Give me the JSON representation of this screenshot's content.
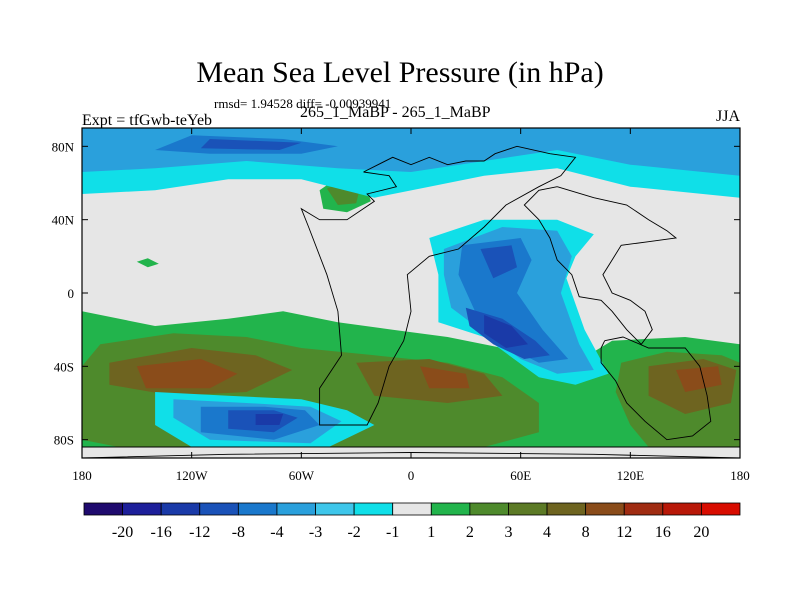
{
  "chart_data": {
    "type": "heatmap",
    "title": "Mean Sea Level Pressure (in hPa)",
    "stats": "rmsd= 1.94528 diff= -0.00939941",
    "left_label": "Expt = tfGwb-teYeb",
    "center_label": "265_1_MaBP - 265_1_MaBP",
    "right_label": "JJA",
    "xlim": [
      -180,
      180
    ],
    "ylim": [
      -90,
      90
    ],
    "x_ticks": [
      {
        "value": -180,
        "label": "180"
      },
      {
        "value": -120,
        "label": "120W"
      },
      {
        "value": -60,
        "label": "60W"
      },
      {
        "value": 0,
        "label": "0"
      },
      {
        "value": 60,
        "label": "60E"
      },
      {
        "value": 120,
        "label": "120E"
      },
      {
        "value": 180,
        "label": "180"
      }
    ],
    "y_ticks": [
      {
        "value": 80,
        "label": "80N"
      },
      {
        "value": 40,
        "label": "40N"
      },
      {
        "value": 0,
        "label": "0"
      },
      {
        "value": -40,
        "label": "40S"
      },
      {
        "value": -80,
        "label": "80S"
      }
    ],
    "colorbar": {
      "levels": [
        "-20",
        "-16",
        "-12",
        "-8",
        "-4",
        "-3",
        "-2",
        "-1",
        "1",
        "2",
        "3",
        "4",
        "8",
        "12",
        "16",
        "20"
      ],
      "colors": [
        "#1f0a6e",
        "#1d1f9a",
        "#1a3aa8",
        "#1a52b8",
        "#1a78cc",
        "#2aa0dc",
        "#3ec6ea",
        "#10dfe8",
        "#e6e6e6",
        "#22b44c",
        "#4e8a2c",
        "#5c7a26",
        "#6e6420",
        "#8a4c1a",
        "#a02c12",
        "#b81808",
        "#d80c00"
      ]
    },
    "regions": [
      {
        "level": 1,
        "points": [
          [
            -180,
            -10
          ],
          [
            -140,
            -18
          ],
          [
            -100,
            -14
          ],
          [
            -70,
            -10
          ],
          [
            -40,
            -16
          ],
          [
            -10,
            -20
          ],
          [
            20,
            -24
          ],
          [
            50,
            -30
          ],
          [
            80,
            -44
          ],
          [
            110,
            -26
          ],
          [
            150,
            -24
          ],
          [
            180,
            -28
          ],
          [
            180,
            -84
          ],
          [
            -180,
            -84
          ]
        ]
      },
      {
        "level": 1,
        "points": [
          [
            -50,
            56
          ],
          [
            -40,
            63
          ],
          [
            -25,
            60
          ],
          [
            -22,
            50
          ],
          [
            -35,
            44
          ],
          [
            -48,
            46
          ]
        ]
      },
      {
        "level": 1,
        "points": [
          [
            -150,
            17
          ],
          [
            -144,
            19
          ],
          [
            -138,
            16
          ],
          [
            -144,
            14
          ]
        ]
      },
      {
        "level": 2,
        "points": [
          [
            -170,
            -28
          ],
          [
            -130,
            -22
          ],
          [
            -90,
            -24
          ],
          [
            -60,
            -30
          ],
          [
            -20,
            -34
          ],
          [
            20,
            -38
          ],
          [
            50,
            -46
          ],
          [
            70,
            -60
          ],
          [
            70,
            -76
          ],
          [
            40,
            -84
          ],
          [
            -20,
            -84
          ],
          [
            -90,
            -84
          ],
          [
            -160,
            -84
          ],
          [
            -180,
            -80
          ],
          [
            -180,
            -40
          ]
        ]
      },
      {
        "level": 2,
        "points": [
          [
            115,
            -38
          ],
          [
            140,
            -32
          ],
          [
            170,
            -34
          ],
          [
            180,
            -38
          ],
          [
            180,
            -84
          ],
          [
            130,
            -84
          ],
          [
            120,
            -72
          ],
          [
            112,
            -54
          ]
        ]
      },
      {
        "level": 2,
        "points": [
          [
            -46,
            57
          ],
          [
            -36,
            61
          ],
          [
            -28,
            57
          ],
          [
            -30,
            49
          ],
          [
            -40,
            48
          ]
        ]
      },
      {
        "level": 3,
        "points": [
          [
            -165,
            -38
          ],
          [
            -120,
            -30
          ],
          [
            -85,
            -34
          ],
          [
            -65,
            -42
          ],
          [
            -90,
            -54
          ],
          [
            -130,
            -56
          ],
          [
            -165,
            -50
          ]
        ]
      },
      {
        "level": 3,
        "points": [
          [
            -30,
            -38
          ],
          [
            10,
            -36
          ],
          [
            40,
            -44
          ],
          [
            50,
            -56
          ],
          [
            20,
            -60
          ],
          [
            -20,
            -56
          ]
        ]
      },
      {
        "level": 3,
        "points": [
          [
            130,
            -40
          ],
          [
            160,
            -36
          ],
          [
            178,
            -42
          ],
          [
            175,
            -60
          ],
          [
            150,
            -66
          ],
          [
            130,
            -56
          ]
        ]
      },
      {
        "level": 4,
        "points": [
          [
            -150,
            -40
          ],
          [
            -115,
            -36
          ],
          [
            -95,
            -44
          ],
          [
            -110,
            -52
          ],
          [
            -145,
            -52
          ]
        ]
      },
      {
        "level": 4,
        "points": [
          [
            5,
            -40
          ],
          [
            30,
            -44
          ],
          [
            32,
            -52
          ],
          [
            10,
            -52
          ]
        ]
      },
      {
        "level": 4,
        "points": [
          [
            145,
            -42
          ],
          [
            168,
            -40
          ],
          [
            170,
            -50
          ],
          [
            150,
            -54
          ]
        ]
      },
      {
        "level": -1,
        "points": [
          [
            -180,
            90
          ],
          [
            180,
            90
          ],
          [
            180,
            52
          ],
          [
            120,
            58
          ],
          [
            80,
            68
          ],
          [
            40,
            64
          ],
          [
            10,
            58
          ],
          [
            -20,
            52
          ],
          [
            -60,
            62
          ],
          [
            -100,
            62
          ],
          [
            -140,
            56
          ],
          [
            -180,
            54
          ]
        ]
      },
      {
        "level": -1,
        "points": [
          [
            10,
            30
          ],
          [
            40,
            40
          ],
          [
            80,
            40
          ],
          [
            100,
            32
          ],
          [
            90,
            20
          ],
          [
            85,
            8
          ],
          [
            95,
            -20
          ],
          [
            108,
            -44
          ],
          [
            90,
            -50
          ],
          [
            70,
            -46
          ],
          [
            40,
            -24
          ],
          [
            15,
            -16
          ],
          [
            15,
            10
          ]
        ]
      },
      {
        "level": -1,
        "points": [
          [
            -140,
            -54
          ],
          [
            -100,
            -56
          ],
          [
            -60,
            -58
          ],
          [
            -35,
            -64
          ],
          [
            -20,
            -72
          ],
          [
            -45,
            -84
          ],
          [
            -120,
            -84
          ],
          [
            -140,
            -72
          ]
        ]
      },
      {
        "level": -2,
        "points": [
          [
            -180,
            90
          ],
          [
            180,
            90
          ],
          [
            180,
            64
          ],
          [
            120,
            70
          ],
          [
            80,
            78
          ],
          [
            40,
            72
          ],
          [
            0,
            66
          ],
          [
            -40,
            68
          ],
          [
            -90,
            72
          ],
          [
            -140,
            68
          ],
          [
            -180,
            66
          ]
        ]
      },
      {
        "level": -2,
        "points": [
          [
            18,
            24
          ],
          [
            50,
            36
          ],
          [
            80,
            34
          ],
          [
            88,
            20
          ],
          [
            82,
            0
          ],
          [
            92,
            -28
          ],
          [
            100,
            -42
          ],
          [
            80,
            -44
          ],
          [
            60,
            -36
          ],
          [
            38,
            -20
          ],
          [
            22,
            -8
          ],
          [
            18,
            10
          ]
        ]
      },
      {
        "level": -2,
        "points": [
          [
            -130,
            -58
          ],
          [
            -90,
            -60
          ],
          [
            -55,
            -62
          ],
          [
            -38,
            -70
          ],
          [
            -55,
            -82
          ],
          [
            -110,
            -80
          ],
          [
            -130,
            -68
          ]
        ]
      },
      {
        "level": -3,
        "points": [
          [
            -120,
            86
          ],
          [
            -70,
            84
          ],
          [
            -40,
            80
          ],
          [
            -60,
            76
          ],
          [
            -110,
            76
          ],
          [
            -140,
            78
          ]
        ]
      },
      {
        "level": -3,
        "points": [
          [
            28,
            26
          ],
          [
            60,
            30
          ],
          [
            66,
            18
          ],
          [
            58,
            0
          ],
          [
            72,
            -20
          ],
          [
            86,
            -36
          ],
          [
            70,
            -38
          ],
          [
            50,
            -28
          ],
          [
            35,
            -10
          ],
          [
            26,
            10
          ]
        ]
      },
      {
        "level": -3,
        "points": [
          [
            -115,
            -62
          ],
          [
            -80,
            -62
          ],
          [
            -58,
            -64
          ],
          [
            -50,
            -72
          ],
          [
            -75,
            -80
          ],
          [
            -115,
            -76
          ]
        ]
      },
      {
        "level": -4,
        "points": [
          [
            -110,
            84
          ],
          [
            -60,
            82
          ],
          [
            -72,
            78
          ],
          [
            -115,
            79
          ]
        ]
      },
      {
        "level": -4,
        "points": [
          [
            38,
            24
          ],
          [
            55,
            26
          ],
          [
            58,
            14
          ],
          [
            45,
            8
          ]
        ]
      },
      {
        "level": -4,
        "points": [
          [
            30,
            -8
          ],
          [
            50,
            -14
          ],
          [
            68,
            -26
          ],
          [
            76,
            -34
          ],
          [
            62,
            -36
          ],
          [
            45,
            -28
          ],
          [
            32,
            -18
          ]
        ]
      },
      {
        "level": -4,
        "points": [
          [
            -100,
            -64
          ],
          [
            -75,
            -64
          ],
          [
            -62,
            -68
          ],
          [
            -75,
            -76
          ],
          [
            -100,
            -74
          ]
        ]
      },
      {
        "level": -8,
        "points": [
          [
            40,
            -12
          ],
          [
            55,
            -18
          ],
          [
            64,
            -28
          ],
          [
            52,
            -30
          ],
          [
            40,
            -22
          ]
        ]
      },
      {
        "level": -8,
        "points": [
          [
            -85,
            -66
          ],
          [
            -70,
            -66
          ],
          [
            -72,
            -72
          ],
          [
            -85,
            -72
          ]
        ]
      }
    ],
    "coastlines": [
      [
        [
          -26,
          66
        ],
        [
          -12,
          64
        ],
        [
          -8,
          58
        ],
        [
          -24,
          54
        ],
        [
          -20,
          50
        ],
        [
          -35,
          40
        ],
        [
          -50,
          40
        ],
        [
          -60,
          46
        ],
        [
          -56,
          36
        ],
        [
          -46,
          10
        ],
        [
          -40,
          -10
        ],
        [
          -38,
          -34
        ],
        [
          -50,
          -52
        ],
        [
          -50,
          -72
        ],
        [
          -24,
          -72
        ],
        [
          -18,
          -60
        ],
        [
          -12,
          -40
        ],
        [
          -4,
          -26
        ],
        [
          0,
          -10
        ],
        [
          -2,
          10
        ],
        [
          10,
          20
        ],
        [
          26,
          24
        ],
        [
          40,
          36
        ],
        [
          52,
          48
        ],
        [
          70,
          58
        ],
        [
          82,
          64
        ],
        [
          90,
          74
        ],
        [
          76,
          76
        ],
        [
          58,
          80
        ],
        [
          46,
          76
        ],
        [
          40,
          72
        ],
        [
          30,
          72
        ],
        [
          20,
          70
        ],
        [
          10,
          74
        ],
        [
          0,
          70
        ],
        [
          -10,
          74
        ],
        [
          -26,
          66
        ]
      ],
      [
        [
          80,
          58
        ],
        [
          100,
          52
        ],
        [
          118,
          48
        ],
        [
          130,
          40
        ],
        [
          140,
          34
        ],
        [
          145,
          30
        ],
        [
          130,
          28
        ],
        [
          115,
          26
        ],
        [
          110,
          18
        ],
        [
          105,
          10
        ],
        [
          110,
          0
        ],
        [
          120,
          -4
        ],
        [
          128,
          -10
        ],
        [
          132,
          -20
        ],
        [
          126,
          -28
        ],
        [
          118,
          -20
        ],
        [
          110,
          -10
        ],
        [
          104,
          -4
        ],
        [
          92,
          -2
        ],
        [
          88,
          10
        ],
        [
          80,
          18
        ],
        [
          76,
          30
        ],
        [
          70,
          40
        ],
        [
          62,
          48
        ],
        [
          70,
          56
        ],
        [
          80,
          58
        ]
      ],
      [
        [
          106,
          -26
        ],
        [
          116,
          -24
        ],
        [
          130,
          -30
        ],
        [
          150,
          -30
        ],
        [
          158,
          -40
        ],
        [
          162,
          -56
        ],
        [
          164,
          -70
        ],
        [
          154,
          -78
        ],
        [
          140,
          -80
        ],
        [
          128,
          -70
        ],
        [
          118,
          -60
        ],
        [
          112,
          -48
        ],
        [
          104,
          -38
        ],
        [
          104,
          -30
        ],
        [
          106,
          -26
        ]
      ],
      [
        [
          -180,
          -84
        ],
        [
          -120,
          -84
        ],
        [
          -60,
          -84
        ],
        [
          0,
          -84
        ],
        [
          60,
          -84
        ],
        [
          120,
          -84
        ],
        [
          180,
          -84
        ]
      ],
      [
        [
          -180,
          -90
        ],
        [
          -100,
          -88
        ],
        [
          0,
          -87
        ],
        [
          100,
          -88
        ],
        [
          180,
          -90
        ]
      ]
    ]
  }
}
